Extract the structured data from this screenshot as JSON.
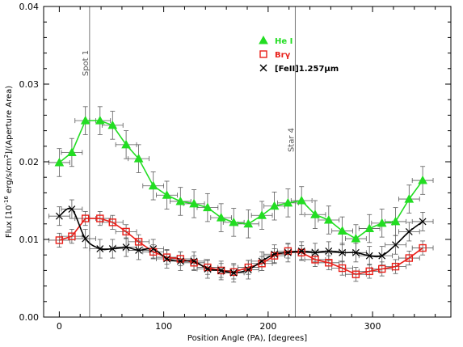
{
  "chart_data": {
    "type": "line",
    "xlabel": "Position Angle (PA), [degrees]",
    "ylabel_parts": [
      "Flux  [10",
      "-16",
      " erg/s/cm",
      "2",
      "]/(Aperture Area)"
    ],
    "xlim": [
      -15,
      375
    ],
    "ylim": [
      0.0,
      0.04
    ],
    "x_ticks": [
      0,
      100,
      200,
      300
    ],
    "x_tick_labels": [
      "0",
      "100",
      "200",
      "300"
    ],
    "y_ticks": [
      0.0,
      0.01,
      0.02,
      0.03,
      0.04
    ],
    "y_tick_labels": [
      "0.00",
      "0.01",
      "0.02",
      "0.03",
      "0.04"
    ],
    "grid": false,
    "legend_position": "top-right",
    "annotations": [
      {
        "text": "Spot 1",
        "x": 29
      },
      {
        "text": "Star 4",
        "x": 226
      }
    ],
    "series": [
      {
        "name": "He I",
        "marker": "triangle",
        "color": "#22dd22",
        "line": true,
        "x": [
          0,
          12,
          25,
          39,
          51,
          64,
          76,
          90,
          103,
          116,
          129,
          142,
          155,
          167,
          181,
          194,
          206,
          219,
          232,
          245,
          258,
          271,
          284,
          297,
          309,
          322,
          335,
          348
        ],
        "y": [
          0.0199,
          0.0212,
          0.0253,
          0.0253,
          0.0247,
          0.0222,
          0.0204,
          0.0169,
          0.0157,
          0.0149,
          0.0146,
          0.0141,
          0.0128,
          0.0122,
          0.012,
          0.0131,
          0.0143,
          0.0147,
          0.015,
          0.0132,
          0.0125,
          0.0111,
          0.0101,
          0.0114,
          0.0121,
          0.0123,
          0.0152,
          0.0176
        ],
        "yerr": 0.0018,
        "xerr": 10
      },
      {
        "name": "Brγ",
        "marker": "square",
        "color": "#e8201a",
        "line": true,
        "x": [
          0,
          12,
          25,
          39,
          51,
          64,
          76,
          90,
          103,
          116,
          129,
          142,
          155,
          167,
          181,
          194,
          206,
          219,
          232,
          245,
          258,
          271,
          284,
          297,
          309,
          322,
          335,
          348
        ],
        "y": [
          0.0099,
          0.0104,
          0.0127,
          0.0127,
          0.0122,
          0.011,
          0.0097,
          0.0084,
          0.0077,
          0.0075,
          0.007,
          0.0064,
          0.006,
          0.0058,
          0.0064,
          0.0069,
          0.0079,
          0.0085,
          0.0083,
          0.0074,
          0.007,
          0.0063,
          0.0055,
          0.0059,
          0.0062,
          0.0065,
          0.0076,
          0.0089
        ],
        "yerr": 0.0009,
        "xerr": 10
      },
      {
        "name": "[FeII]1.257μm",
        "marker": "x",
        "color": "#000000",
        "line": true,
        "x": [
          0,
          12,
          25,
          39,
          51,
          64,
          76,
          90,
          103,
          116,
          129,
          142,
          155,
          167,
          181,
          194,
          206,
          219,
          232,
          245,
          258,
          271,
          284,
          297,
          309,
          322,
          335,
          348
        ],
        "y": [
          0.013,
          0.0139,
          0.0101,
          0.0088,
          0.0088,
          0.009,
          0.0086,
          0.0088,
          0.0075,
          0.0072,
          0.0072,
          0.0062,
          0.006,
          0.0057,
          0.0061,
          0.0072,
          0.0081,
          0.0083,
          0.0085,
          0.0083,
          0.0085,
          0.0083,
          0.0083,
          0.0079,
          0.0079,
          0.0093,
          0.011,
          0.0123
        ],
        "yerr": 0.0012,
        "xerr": 10
      }
    ]
  }
}
